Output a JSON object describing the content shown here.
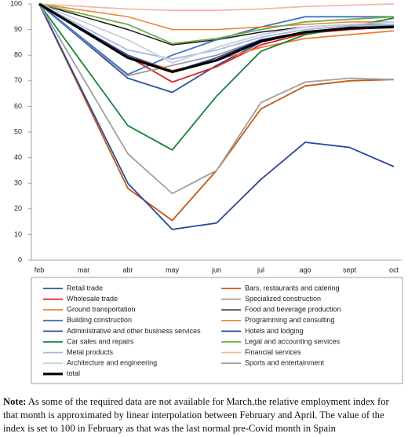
{
  "chart_data": {
    "type": "line",
    "categories": [
      "feb",
      "mar",
      "abr",
      "may",
      "jun",
      "jul",
      "ago",
      "sept",
      "oct"
    ],
    "ylim": [
      0,
      100
    ],
    "yticks": [
      0,
      10,
      20,
      30,
      40,
      50,
      60,
      70,
      80,
      90,
      100
    ],
    "series": [
      {
        "name": "Retail trade",
        "color": "#2f5597",
        "width": 1.8,
        "values": [
          100,
          85.5,
          71,
          65.5,
          76,
          85,
          89,
          91,
          91.5
        ]
      },
      {
        "name": "Bars, restaurants and catering",
        "color": "#c55a11",
        "width": 1.8,
        "values": [
          100,
          64,
          28,
          15.5,
          35,
          59,
          68,
          70,
          70.5
        ]
      },
      {
        "name": "Wholesale trade",
        "color": "#e02020",
        "width": 1.8,
        "values": [
          100,
          89.75,
          79.5,
          69.5,
          75.5,
          84,
          88.5,
          90,
          91
        ]
      },
      {
        "name": "Specialized construction",
        "color": "#9e9e9e",
        "width": 1.8,
        "values": [
          100,
          86,
          72,
          76,
          80,
          86,
          89,
          91,
          92
        ]
      },
      {
        "name": "Ground transportation",
        "color": "#ed7d31",
        "width": 1.8,
        "values": [
          100,
          90,
          80,
          74,
          78,
          83,
          86.5,
          88,
          89.5
        ]
      },
      {
        "name": "Food and beverage production",
        "color": "#1a1a1a",
        "width": 1.5,
        "values": [
          100,
          95,
          90,
          84,
          86,
          89,
          91,
          92,
          92
        ]
      },
      {
        "name": "Building construction",
        "color": "#4472c4",
        "width": 1.8,
        "values": [
          100,
          86.25,
          72.5,
          80,
          86,
          91,
          95,
          95,
          95
        ]
      },
      {
        "name": "Programming and consulting",
        "color": "#f08030",
        "width": 1.5,
        "values": [
          100,
          97.5,
          95,
          90,
          90,
          91,
          92,
          93,
          93
        ]
      },
      {
        "name": "Administrative and other business services",
        "color": "#3a4fa0",
        "width": 1.8,
        "values": [
          100,
          90,
          80,
          73.5,
          79,
          86,
          89,
          90.5,
          91
        ]
      },
      {
        "name": "Hotels and lodging",
        "color": "#2a46a0",
        "width": 1.8,
        "values": [
          100,
          65,
          30,
          12,
          14.5,
          31.5,
          46,
          44,
          36.5
        ]
      },
      {
        "name": "Car sales and repairs",
        "color": "#14843a",
        "width": 1.8,
        "values": [
          100,
          76.25,
          52.5,
          43,
          64,
          81.5,
          88,
          91,
          94.5
        ]
      },
      {
        "name": "Legal and accounting services",
        "color": "#70ad47",
        "width": 1.8,
        "values": [
          100,
          96,
          92,
          84.5,
          86.5,
          90,
          93,
          94,
          95
        ]
      },
      {
        "name": "Metal products",
        "color": "#a9b8e0",
        "width": 1.8,
        "values": [
          100,
          91,
          82,
          78.5,
          82,
          87,
          90,
          91.5,
          92
        ]
      },
      {
        "name": "Financial services",
        "color": "#f4b7a8",
        "width": 1.8,
        "values": [
          100,
          99,
          98,
          97.5,
          97.5,
          98,
          99,
          99.5,
          100
        ]
      },
      {
        "name": "Architecture and engineering",
        "color": "#c9cfe0",
        "width": 1.8,
        "values": [
          100,
          93,
          86,
          77,
          83,
          88,
          91,
          92,
          93
        ]
      },
      {
        "name": "Sports and entertainment",
        "color": "#a0a0a0",
        "width": 1.8,
        "values": [
          100,
          70.75,
          41.5,
          26,
          35,
          61.5,
          69.5,
          71,
          70.5
        ]
      },
      {
        "name": "total",
        "color": "#000000",
        "width": 3.2,
        "values": [
          100,
          89.5,
          79,
          73.5,
          78,
          85.5,
          89,
          90.5,
          91
        ]
      }
    ]
  },
  "note": {
    "label": "Note:",
    "text": "As some of the required data are not available for March,the relative employment index for that month is approximated by linear interpolation between February and April. The value of the index is set to 100 in February as that was the last normal pre-Covid month in Spain"
  }
}
